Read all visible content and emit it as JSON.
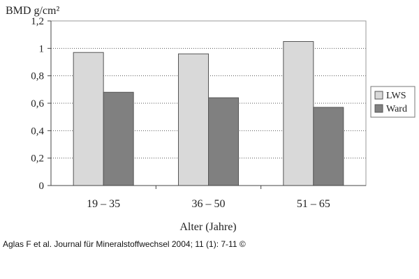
{
  "chart_data": {
    "type": "bar",
    "ylabel": "BMD g/cm²",
    "xlabel": "Alter (Jahre)",
    "categories": [
      "19 – 35",
      "36 – 50",
      "51 – 65"
    ],
    "series": [
      {
        "name": "LWS",
        "values": [
          0.97,
          0.96,
          1.05
        ],
        "color": "#d9d9d9"
      },
      {
        "name": "Ward",
        "values": [
          0.68,
          0.64,
          0.57
        ],
        "color": "#808080"
      }
    ],
    "ylim": [
      0,
      1.2
    ],
    "yticks": [
      "0",
      "0,2",
      "0,4",
      "0,6",
      "0,8",
      "1",
      "1,2"
    ],
    "grid": true,
    "legend": "right"
  },
  "caption": "Aglas F et al. Journal für Mineralstoffwechsel 2004; 11 (1): 7-11 ©"
}
